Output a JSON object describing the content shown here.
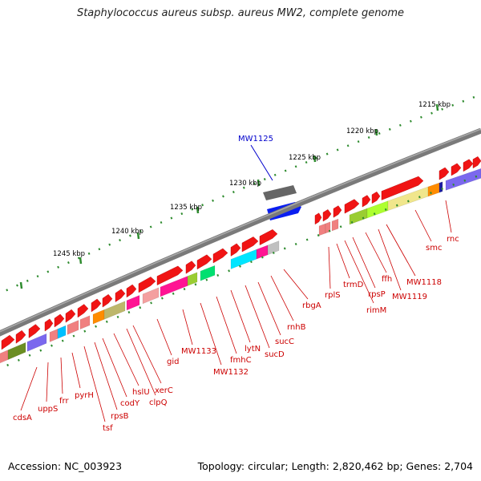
{
  "title": "Staphylococcus aureus subsp. aureus MW2, complete genome",
  "footer": {
    "accession": "Accession: NC_003923",
    "summary": "Topology: circular; Length: 2,820,462 bp; Genes: 2,704"
  },
  "colors": {
    "gene_label": "#cc0000",
    "highlight_label": "#0000cc",
    "backbone": "#808080",
    "ruler": "#2e8b2e"
  },
  "ruler_labels": [
    "1215 kbp",
    "1220 kbp",
    "1225 kbp",
    "1230 kbp",
    "1235 kbp",
    "1240 kbp",
    "1245 kbp"
  ],
  "highlight_gene": "MW1125",
  "gene_labels": [
    "cdsA",
    "uppS",
    "frr",
    "pyrH",
    "tsf",
    "rpsB",
    "codY",
    "hslU",
    "clpQ",
    "xerC",
    "gid",
    "MW1133",
    "MW1132",
    "fmhC",
    "lytN",
    "sucD",
    "sucC",
    "rnhB",
    "rbgA",
    "rplS",
    "trmD",
    "rimM",
    "rpsP",
    "ffh",
    "MW1119",
    "MW1118",
    "smc",
    "rnc"
  ]
}
